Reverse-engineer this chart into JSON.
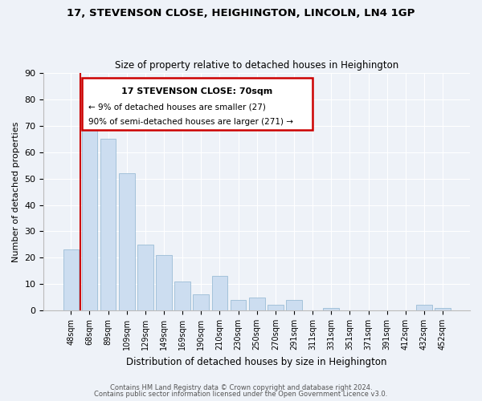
{
  "title": "17, STEVENSON CLOSE, HEIGHINGTON, LINCOLN, LN4 1GP",
  "subtitle": "Size of property relative to detached houses in Heighington",
  "xlabel": "Distribution of detached houses by size in Heighington",
  "ylabel": "Number of detached properties",
  "bar_color": "#ccddf0",
  "bar_edge_color": "#9bbdd6",
  "categories": [
    "48sqm",
    "68sqm",
    "89sqm",
    "109sqm",
    "129sqm",
    "149sqm",
    "169sqm",
    "190sqm",
    "210sqm",
    "230sqm",
    "250sqm",
    "270sqm",
    "291sqm",
    "311sqm",
    "331sqm",
    "351sqm",
    "371sqm",
    "391sqm",
    "412sqm",
    "432sqm",
    "452sqm"
  ],
  "values": [
    23,
    74,
    65,
    52,
    25,
    21,
    11,
    6,
    13,
    4,
    5,
    2,
    4,
    0,
    1,
    0,
    0,
    0,
    0,
    2,
    1
  ],
  "ylim": [
    0,
    90
  ],
  "yticks": [
    0,
    10,
    20,
    30,
    40,
    50,
    60,
    70,
    80,
    90
  ],
  "redline_x": 0.5,
  "annotation_title": "17 STEVENSON CLOSE: 70sqm",
  "annotation_line1": "← 9% of detached houses are smaller (27)",
  "annotation_line2": "90% of semi-detached houses are larger (271) →",
  "annotation_box_color": "#ffffff",
  "annotation_box_edge": "#cc0000",
  "redline_color": "#cc0000",
  "footer1": "Contains HM Land Registry data © Crown copyright and database right 2024.",
  "footer2": "Contains public sector information licensed under the Open Government Licence v3.0.",
  "background_color": "#eef2f8",
  "grid_color": "#ffffff"
}
